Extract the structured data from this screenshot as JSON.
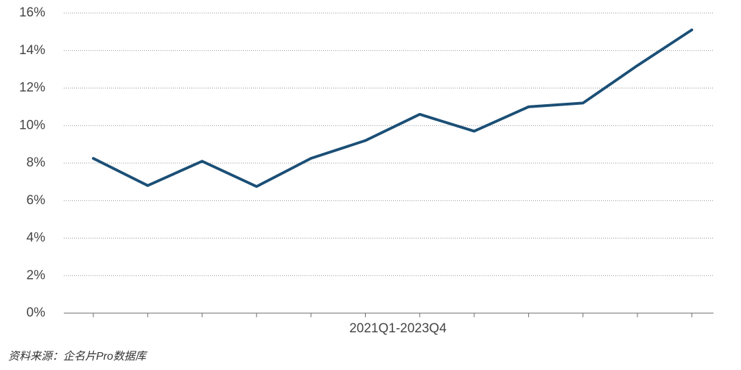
{
  "chart_data": {
    "type": "line",
    "x_label": "2021Q1-2023Q4",
    "source": "资料来源：企名片Pro数据库",
    "categories": [
      null,
      null,
      null,
      null,
      null,
      null,
      null,
      null,
      null,
      null,
      null,
      null
    ],
    "series": [
      {
        "color": "#1b4f76",
        "values": [
          8.25,
          6.8,
          8.1,
          6.75,
          8.25,
          9.2,
          10.6,
          9.7,
          11.0,
          11.2,
          13.2,
          15.1
        ]
      }
    ],
    "ylim": [
      0,
      16
    ],
    "yticks": [
      {
        "value": 0,
        "label": "0%"
      },
      {
        "value": 2,
        "label": "2%"
      },
      {
        "value": 4,
        "label": "4%"
      },
      {
        "value": 6,
        "label": "6%"
      },
      {
        "value": 8,
        "label": "8%"
      },
      {
        "value": 10,
        "label": "10%"
      },
      {
        "value": 12,
        "label": "12%"
      },
      {
        "value": 14,
        "label": "14%"
      },
      {
        "value": 16,
        "label": "16%"
      }
    ],
    "grid": true
  }
}
